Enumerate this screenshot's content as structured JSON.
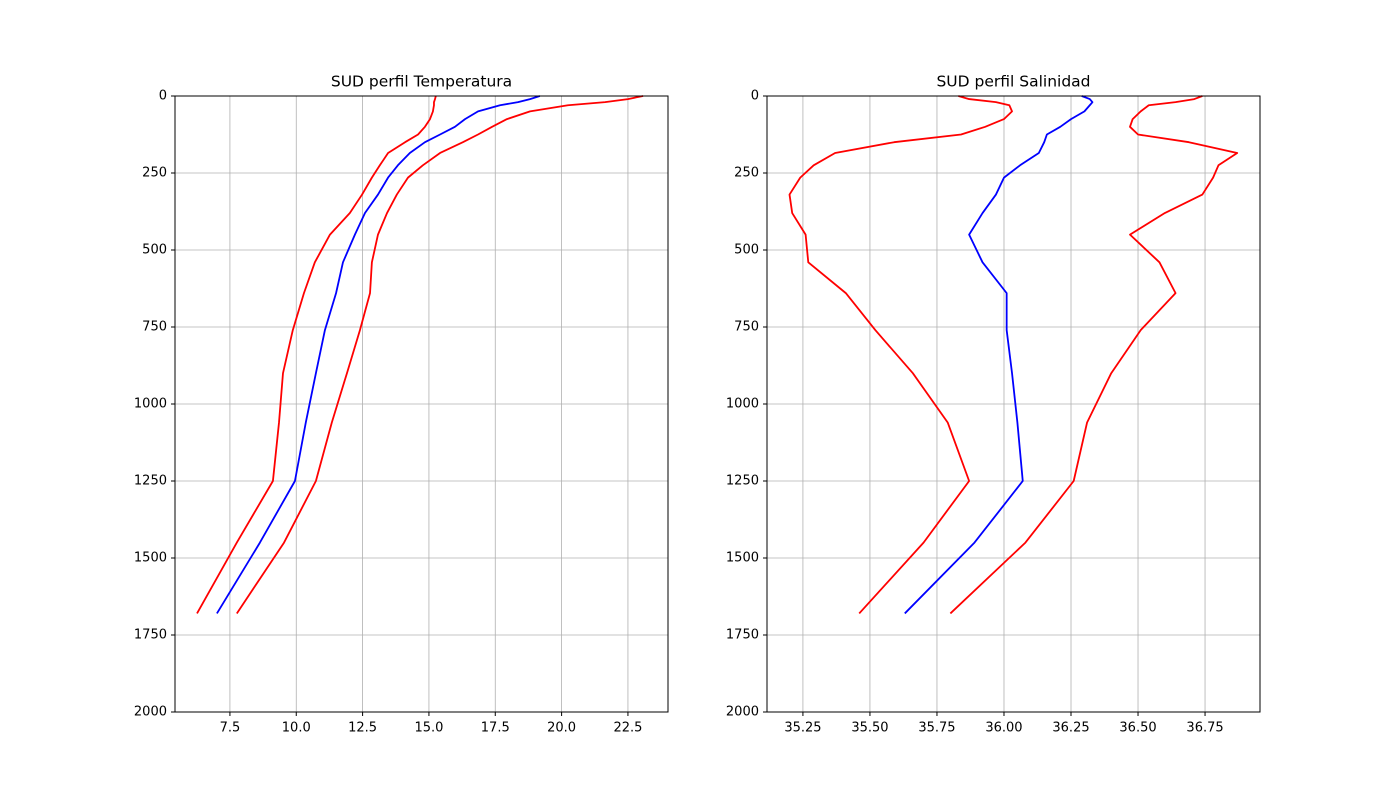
{
  "chart_data": [
    {
      "type": "line",
      "title": "SUD perfil Temperatura",
      "y_inverted": true,
      "grid": true,
      "y": [
        0,
        10,
        20,
        30,
        50,
        75,
        100,
        125,
        150,
        185,
        225,
        265,
        320,
        380,
        450,
        540,
        640,
        760,
        900,
        1060,
        1250,
        1450,
        1680
      ],
      "series": [
        {
          "color": "#ff0000",
          "x": [
            23.07,
            22.5,
            21.64,
            20.24,
            18.81,
            17.94,
            17.38,
            16.85,
            16.28,
            15.42,
            14.77,
            14.21,
            13.79,
            13.42,
            13.08,
            12.85,
            12.78,
            12.4,
            11.91,
            11.34,
            10.74,
            9.54,
            7.76
          ]
        },
        {
          "color": "#0000ff",
          "x": [
            19.18,
            18.81,
            18.36,
            17.68,
            16.85,
            16.36,
            15.98,
            15.42,
            14.85,
            14.28,
            13.83,
            13.46,
            13.08,
            12.59,
            12.21,
            11.76,
            11.5,
            11.08,
            10.74,
            10.36,
            9.95,
            8.63,
            7.01
          ]
        },
        {
          "color": "#ff0000",
          "x": [
            15.26,
            15.23,
            15.19,
            15.19,
            15.15,
            15.04,
            14.85,
            14.59,
            14.1,
            13.46,
            13.15,
            12.85,
            12.48,
            12.02,
            11.27,
            10.7,
            10.29,
            9.87,
            9.5,
            9.35,
            9.12,
            7.76,
            6.26
          ]
        }
      ],
      "xlim": [
        5.43,
        24.01
      ],
      "xticks": [
        7.5,
        {
          "value": 10,
          "label": "10.0"
        },
        12.5,
        {
          "value": 15,
          "label": "15.0"
        },
        17.5,
        {
          "value": 20,
          "label": "20.0"
        },
        22.5
      ],
      "ylim": [
        2000,
        0
      ],
      "yticks": [
        0,
        250,
        500,
        750,
        1000,
        1250,
        1500,
        1750,
        2000
      ]
    },
    {
      "type": "line",
      "title": "SUD perfil Salinidad",
      "y_inverted": true,
      "grid": true,
      "y": [
        0,
        10,
        20,
        30,
        50,
        75,
        100,
        125,
        150,
        185,
        225,
        265,
        320,
        380,
        450,
        540,
        640,
        760,
        900,
        1060,
        1250,
        1450,
        1680
      ],
      "series": [
        {
          "color": "#ff0000",
          "x": [
            35.83,
            35.87,
            35.97,
            36.02,
            36.03,
            36.0,
            35.93,
            35.84,
            35.59,
            35.37,
            35.29,
            35.24,
            35.2,
            35.21,
            35.26,
            35.27,
            35.41,
            35.52,
            35.66,
            35.79,
            35.87,
            35.7,
            35.46
          ]
        },
        {
          "color": "#0000ff",
          "x": [
            36.29,
            36.32,
            36.33,
            36.32,
            36.3,
            36.25,
            36.21,
            36.16,
            36.15,
            36.13,
            36.06,
            36.0,
            35.97,
            35.92,
            35.87,
            35.92,
            36.01,
            36.01,
            36.03,
            36.05,
            36.07,
            35.89,
            35.63
          ]
        },
        {
          "color": "#ff0000",
          "x": [
            36.74,
            36.71,
            36.64,
            36.54,
            36.51,
            36.48,
            36.47,
            36.5,
            36.69,
            36.87,
            36.8,
            36.78,
            36.74,
            36.6,
            36.47,
            36.58,
            36.64,
            36.51,
            36.4,
            36.31,
            36.26,
            36.08,
            35.8
          ]
        }
      ],
      "xlim": [
        35.116,
        36.955
      ],
      "xticks": [
        35.25,
        {
          "value": 35.5,
          "label": "35.50"
        },
        35.75,
        {
          "value": 36,
          "label": "36.00"
        },
        36.25,
        {
          "value": 36.5,
          "label": "36.50"
        },
        36.75
      ],
      "ylim": [
        2000,
        0
      ],
      "yticks": [
        0,
        250,
        500,
        750,
        1000,
        1250,
        1500,
        1750,
        2000
      ]
    }
  ]
}
